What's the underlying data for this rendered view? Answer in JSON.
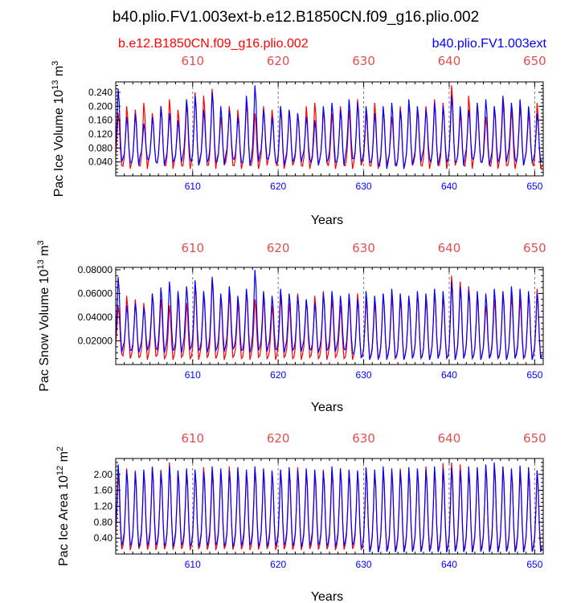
{
  "title": "b40.plio.FV1.003ext-b.e12.B1850CN.f09_g16.plio.002",
  "legend": {
    "left": "b.e12.B1850CN.f09_g16.plio.002",
    "right": "b40.plio.FV1.003ext",
    "left_color": "#ff0000",
    "right_color": "#0000ff"
  },
  "chart_data": [
    {
      "type": "line",
      "ylabel_main": "Pac Ice Volume 10",
      "ylabel_exp": "13",
      "ylabel_unit": " m",
      "ylabel_unit_exp": "3",
      "xlabel": "Years",
      "xlim": [
        601,
        651
      ],
      "ylim": [
        0.0,
        0.27
      ],
      "yticks": [
        0.04,
        0.08,
        0.12,
        0.16,
        0.2,
        0.24
      ],
      "yticklabels": [
        "0.040",
        "0.080",
        "0.120",
        "0.160",
        "0.200",
        "0.240"
      ],
      "xticks": [
        610,
        620,
        630,
        640,
        650
      ],
      "xticklabels": [
        "610",
        "620",
        "630",
        "640",
        "650"
      ],
      "top_xticklabels": [
        "610",
        "620",
        "630",
        "640",
        "650"
      ],
      "series": [
        {
          "name": "b.e12.B1850CN.f09_g16.plio.002",
          "color": "#ff0000",
          "min": [
            0.03,
            0.02,
            0.03,
            0.02,
            0.04,
            0.03,
            0.02,
            0.03,
            0.02,
            0.03,
            0.03,
            0.02,
            0.04,
            0.03,
            0.02,
            0.03,
            0.02,
            0.03,
            0.04,
            0.02,
            0.03,
            0.03,
            0.02,
            0.03,
            0.04,
            0.02,
            0.03,
            0.02,
            0.03,
            0.03,
            0.02,
            0.03,
            0.04,
            0.02,
            0.03,
            0.03,
            0.02,
            0.03,
            0.02,
            0.03,
            0.03,
            0.02,
            0.04,
            0.03,
            0.02,
            0.03,
            0.02,
            0.03,
            0.04,
            0.02
          ],
          "max": [
            0.18,
            0.2,
            0.19,
            0.21,
            0.18,
            0.2,
            0.22,
            0.19,
            0.21,
            0.24,
            0.23,
            0.25,
            0.17,
            0.2,
            0.19,
            0.21,
            0.18,
            0.2,
            0.19,
            0.2,
            0.19,
            0.18,
            0.2,
            0.21,
            0.19,
            0.18,
            0.2,
            0.19,
            0.22,
            0.18,
            0.21,
            0.19,
            0.17,
            0.2,
            0.21,
            0.19,
            0.2,
            0.22,
            0.21,
            0.26,
            0.18,
            0.23,
            0.2,
            0.17,
            0.2,
            0.21,
            0.19,
            0.2,
            0.18,
            0.21
          ]
        },
        {
          "name": "b40.plio.FV1.003ext",
          "color": "#0000ff",
          "min": [
            0.04,
            0.04,
            0.03,
            0.05,
            0.04,
            0.03,
            0.04,
            0.04,
            0.05,
            0.03,
            0.04,
            0.04,
            0.03,
            0.05,
            0.04,
            0.03,
            0.04,
            0.05,
            0.04,
            0.03,
            0.04,
            0.04,
            0.05,
            0.03,
            0.04,
            0.04,
            0.03,
            0.05,
            0.04,
            0.04,
            0.03,
            0.02,
            0.03,
            0.02,
            0.03,
            0.04,
            0.05,
            0.03,
            0.04,
            0.04,
            0.03,
            0.05,
            0.04,
            0.03,
            0.04,
            0.04,
            0.05,
            0.03,
            0.04,
            0.04
          ],
          "max": [
            0.25,
            0.17,
            0.18,
            0.15,
            0.17,
            0.2,
            0.18,
            0.16,
            0.22,
            0.23,
            0.19,
            0.24,
            0.2,
            0.19,
            0.17,
            0.23,
            0.26,
            0.19,
            0.17,
            0.2,
            0.19,
            0.18,
            0.17,
            0.16,
            0.2,
            0.21,
            0.19,
            0.22,
            0.21,
            0.2,
            0.18,
            0.2,
            0.21,
            0.19,
            0.22,
            0.2,
            0.19,
            0.21,
            0.2,
            0.23,
            0.2,
            0.19,
            0.21,
            0.22,
            0.2,
            0.23,
            0.21,
            0.22,
            0.2,
            0.18
          ]
        }
      ]
    },
    {
      "type": "line",
      "ylabel_main": "Pac Snow Volume 10",
      "ylabel_exp": "13",
      "ylabel_unit": " m",
      "ylabel_unit_exp": "3",
      "xlabel": "Years",
      "xlim": [
        601,
        651
      ],
      "ylim": [
        0.0,
        0.082
      ],
      "yticks": [
        0.02,
        0.04,
        0.06,
        0.08
      ],
      "yticklabels": [
        "0.02000",
        "0.04000",
        "0.06000",
        "0.08000"
      ],
      "xticks": [
        610,
        620,
        630,
        640,
        650
      ],
      "xticklabels": [
        "610",
        "620",
        "630",
        "640",
        "650"
      ],
      "top_xticklabels": [
        "610",
        "620",
        "630",
        "640",
        "650"
      ],
      "series": [
        {
          "name": "b.e12.B1850CN.f09_g16.plio.002",
          "color": "#ff0000",
          "min": [
            0.009,
            0.005,
            0.006,
            0.004,
            0.007,
            0.005,
            0.004,
            0.006,
            0.005,
            0.004,
            0.006,
            0.005,
            0.004,
            0.006,
            0.005,
            0.004,
            0.006,
            0.005,
            0.004,
            0.006,
            0.005,
            0.004,
            0.006,
            0.005,
            0.004,
            0.006,
            0.005,
            0.004,
            0.006,
            0.005,
            0.004,
            0.006,
            0.005,
            0.004,
            0.006,
            0.005,
            0.004,
            0.006,
            0.005,
            0.004,
            0.006,
            0.005,
            0.004,
            0.006,
            0.005,
            0.004,
            0.006,
            0.005,
            0.004,
            0.006
          ],
          "max": [
            0.05,
            0.058,
            0.055,
            0.052,
            0.06,
            0.055,
            0.05,
            0.058,
            0.052,
            0.068,
            0.06,
            0.072,
            0.058,
            0.06,
            0.052,
            0.062,
            0.055,
            0.058,
            0.05,
            0.058,
            0.052,
            0.06,
            0.055,
            0.058,
            0.062,
            0.055,
            0.05,
            0.057,
            0.06,
            0.055,
            0.052,
            0.06,
            0.058,
            0.055,
            0.058,
            0.06,
            0.055,
            0.062,
            0.058,
            0.075,
            0.07,
            0.066,
            0.058,
            0.05,
            0.055,
            0.06,
            0.058,
            0.055,
            0.06,
            0.064
          ]
        },
        {
          "name": "b40.plio.FV1.003ext",
          "color": "#0000ff",
          "min": [
            0.01,
            0.012,
            0.01,
            0.012,
            0.014,
            0.01,
            0.012,
            0.01,
            0.013,
            0.012,
            0.01,
            0.012,
            0.011,
            0.013,
            0.012,
            0.01,
            0.012,
            0.011,
            0.013,
            0.01,
            0.012,
            0.011,
            0.013,
            0.01,
            0.012,
            0.011,
            0.013,
            0.01,
            0.006,
            0.004,
            0.005,
            0.004,
            0.006,
            0.004,
            0.005,
            0.006,
            0.004,
            0.005,
            0.006,
            0.004,
            0.005,
            0.006,
            0.004,
            0.005,
            0.006,
            0.004,
            0.005,
            0.006,
            0.004,
            0.005
          ],
          "max": [
            0.074,
            0.05,
            0.052,
            0.048,
            0.06,
            0.065,
            0.07,
            0.062,
            0.066,
            0.071,
            0.062,
            0.074,
            0.06,
            0.066,
            0.058,
            0.064,
            0.08,
            0.062,
            0.058,
            0.064,
            0.06,
            0.058,
            0.055,
            0.052,
            0.06,
            0.062,
            0.058,
            0.06,
            0.055,
            0.062,
            0.058,
            0.06,
            0.064,
            0.06,
            0.058,
            0.062,
            0.06,
            0.064,
            0.062,
            0.07,
            0.066,
            0.063,
            0.062,
            0.06,
            0.064,
            0.062,
            0.066,
            0.064,
            0.062,
            0.06
          ]
        }
      ]
    },
    {
      "type": "line",
      "ylabel_main": "Pac Ice Area 10",
      "ylabel_exp": "12",
      "ylabel_unit": " m",
      "ylabel_unit_exp": "2",
      "xlabel": "Years",
      "xlim": [
        601,
        651
      ],
      "ylim": [
        0.0,
        2.4
      ],
      "yticks": [
        0.4,
        0.8,
        1.2,
        1.6,
        2.0
      ],
      "yticklabels": [
        "0.40",
        "0.80",
        "1.20",
        "1.60",
        "2.00"
      ],
      "xticks": [
        610,
        620,
        630,
        640,
        650
      ],
      "xticklabels": [
        "610",
        "620",
        "630",
        "640",
        "650"
      ],
      "top_xticklabels": [
        "610",
        "620",
        "630",
        "640",
        "650"
      ],
      "series": [
        {
          "name": "b.e12.B1850CN.f09_g16.plio.002",
          "color": "#ff0000",
          "min": [
            0.12,
            0.1,
            0.13,
            0.11,
            0.1,
            0.12,
            0.11,
            0.13,
            0.1,
            0.12,
            0.11,
            0.1,
            0.13,
            0.11,
            0.12,
            0.1,
            0.11,
            0.13,
            0.1,
            0.12,
            0.11,
            0.1,
            0.13,
            0.11,
            0.12,
            0.1,
            0.11,
            0.13,
            0.1,
            0.12,
            0.11,
            0.1,
            0.13,
            0.11,
            0.12,
            0.1,
            0.11,
            0.13,
            0.1,
            0.12,
            0.11,
            0.1,
            0.13,
            0.11,
            0.12,
            0.1,
            0.11,
            0.13,
            0.1,
            0.12
          ],
          "max": [
            2.0,
            2.15,
            2.1,
            2.05,
            2.2,
            2.12,
            2.3,
            2.08,
            2.05,
            2.1,
            2.18,
            2.05,
            2.12,
            2.2,
            2.1,
            2.05,
            2.15,
            2.08,
            2.1,
            2.12,
            2.05,
            2.18,
            2.1,
            2.02,
            2.12,
            2.08,
            2.15,
            2.1,
            2.05,
            2.12,
            2.08,
            2.1,
            2.05,
            2.15,
            2.1,
            2.12,
            2.2,
            2.15,
            2.28,
            2.3,
            2.25,
            2.1,
            2.15,
            2.2,
            2.25,
            2.18,
            2.1,
            2.05,
            2.0,
            2.1
          ]
        },
        {
          "name": "b40.plio.FV1.003ext",
          "color": "#0000ff",
          "min": [
            0.2,
            0.22,
            0.18,
            0.2,
            0.22,
            0.2,
            0.18,
            0.22,
            0.2,
            0.18,
            0.2,
            0.22,
            0.2,
            0.18,
            0.2,
            0.22,
            0.2,
            0.18,
            0.2,
            0.22,
            0.2,
            0.18,
            0.2,
            0.22,
            0.2,
            0.18,
            0.2,
            0.22,
            0.2,
            0.05,
            0.04,
            0.06,
            0.05,
            0.04,
            0.06,
            0.05,
            0.06,
            0.05,
            0.04,
            0.06,
            0.05,
            0.04,
            0.06,
            0.05,
            0.04,
            0.06,
            0.05,
            0.04,
            0.06,
            0.05
          ],
          "max": [
            2.25,
            2.1,
            2.05,
            2.12,
            2.18,
            2.08,
            2.2,
            2.1,
            2.15,
            2.12,
            2.08,
            2.2,
            2.15,
            2.1,
            2.18,
            2.12,
            2.2,
            2.15,
            2.08,
            2.12,
            2.18,
            2.1,
            2.15,
            2.12,
            2.08,
            2.2,
            2.15,
            2.12,
            2.1,
            2.18,
            2.12,
            2.2,
            2.15,
            2.1,
            2.18,
            2.15,
            2.12,
            2.2,
            2.15,
            2.18,
            2.12,
            2.2,
            2.18,
            2.25,
            2.3,
            2.2,
            2.15,
            2.22,
            2.18,
            2.1
          ]
        }
      ]
    }
  ]
}
